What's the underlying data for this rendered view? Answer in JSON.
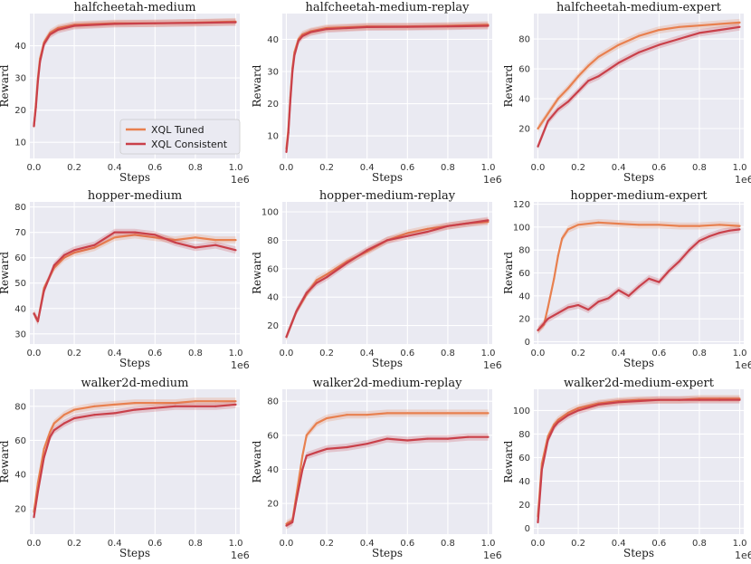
{
  "figure": {
    "xlabel": "Steps",
    "ylabel": "Reward",
    "x_offset_label": "1e6",
    "colors": {
      "axes_bg": "#eaeaf2",
      "grid": "#ffffff",
      "tuned": "#e8804f",
      "consistent": "#c9404a"
    }
  },
  "legend": {
    "placement": "lower-right of first panel",
    "items": [
      {
        "label": "XQL Tuned",
        "color": "#e8804f"
      },
      {
        "label": "XQL Consistent",
        "color": "#c9404a"
      }
    ]
  },
  "chart_data": [
    {
      "type": "line",
      "title": "halfcheetah-medium",
      "xlim": [
        -0.02,
        1.02
      ],
      "ylim": [
        5,
        50
      ],
      "xticks": [
        0.0,
        0.2,
        0.4,
        0.6,
        0.8,
        1.0
      ],
      "xtick_labels": [
        "0.0",
        "0.2",
        "0.4",
        "0.6",
        "0.8",
        "1.0"
      ],
      "yticks": [
        10,
        20,
        30,
        40
      ],
      "ytick_labels": [
        "10",
        "20",
        "30",
        "40"
      ],
      "series": [
        {
          "name": "XQL Tuned",
          "x": [
            0,
            0.01,
            0.02,
            0.03,
            0.05,
            0.08,
            0.12,
            0.2,
            0.4,
            0.6,
            0.8,
            1.0
          ],
          "values": [
            15,
            22,
            30,
            36,
            41,
            44,
            45.5,
            46.5,
            47,
            47,
            47.2,
            47.5
          ]
        },
        {
          "name": "XQL Consistent",
          "x": [
            0,
            0.01,
            0.02,
            0.03,
            0.05,
            0.08,
            0.12,
            0.2,
            0.4,
            0.6,
            0.8,
            1.0
          ],
          "values": [
            15,
            21,
            29,
            35,
            40.5,
            43.5,
            45,
            46.2,
            46.8,
            47,
            47.1,
            47.3
          ]
        }
      ]
    },
    {
      "type": "line",
      "title": "halfcheetah-medium-replay",
      "xlim": [
        -0.02,
        1.02
      ],
      "ylim": [
        3,
        48
      ],
      "xticks": [
        0.0,
        0.2,
        0.4,
        0.6,
        0.8,
        1.0
      ],
      "xtick_labels": [
        "0.0",
        "0.2",
        "0.4",
        "0.6",
        "0.8",
        "1.0"
      ],
      "yticks": [
        10,
        20,
        30,
        40
      ],
      "ytick_labels": [
        "10",
        "20",
        "30",
        "40"
      ],
      "series": [
        {
          "name": "XQL Tuned",
          "x": [
            0,
            0.01,
            0.02,
            0.03,
            0.04,
            0.06,
            0.08,
            0.12,
            0.2,
            0.4,
            0.6,
            0.8,
            1.0
          ],
          "values": [
            6,
            12,
            22,
            31,
            36,
            40,
            41.5,
            42.5,
            43.5,
            44,
            44,
            44.2,
            44.5
          ]
        },
        {
          "name": "XQL Consistent",
          "x": [
            0,
            0.01,
            0.02,
            0.03,
            0.04,
            0.06,
            0.08,
            0.12,
            0.2,
            0.4,
            0.6,
            0.8,
            1.0
          ],
          "values": [
            5,
            11,
            21,
            30,
            35,
            39.5,
            41,
            42.2,
            43.2,
            43.8,
            43.9,
            44,
            44.2
          ]
        }
      ]
    },
    {
      "type": "line",
      "title": "halfcheetah-medium-expert",
      "xlim": [
        -0.02,
        1.02
      ],
      "ylim": [
        0,
        97
      ],
      "xticks": [
        0.0,
        0.2,
        0.4,
        0.6,
        0.8,
        1.0
      ],
      "xtick_labels": [
        "0.0",
        "0.2",
        "0.4",
        "0.6",
        "0.8",
        "1.0"
      ],
      "yticks": [
        20,
        40,
        60,
        80
      ],
      "ytick_labels": [
        "20",
        "40",
        "60",
        "80"
      ],
      "series": [
        {
          "name": "XQL Tuned",
          "x": [
            0,
            0.05,
            0.1,
            0.15,
            0.2,
            0.25,
            0.3,
            0.4,
            0.5,
            0.6,
            0.7,
            0.8,
            0.9,
            1.0
          ],
          "values": [
            20,
            30,
            40,
            47,
            55,
            62,
            68,
            76,
            82,
            86,
            88,
            89,
            90,
            91
          ]
        },
        {
          "name": "XQL Consistent",
          "x": [
            0,
            0.05,
            0.1,
            0.15,
            0.2,
            0.25,
            0.3,
            0.4,
            0.5,
            0.6,
            0.7,
            0.8,
            0.9,
            1.0
          ],
          "values": [
            8,
            25,
            33,
            38,
            45,
            52,
            55,
            64,
            71,
            76,
            80,
            84,
            86,
            88
          ]
        }
      ]
    },
    {
      "type": "line",
      "title": "hopper-medium",
      "xlim": [
        -0.02,
        1.02
      ],
      "ylim": [
        26,
        82
      ],
      "xticks": [
        0.0,
        0.2,
        0.4,
        0.6,
        0.8,
        1.0
      ],
      "xtick_labels": [
        "0.0",
        "0.2",
        "0.4",
        "0.6",
        "0.8",
        "1.0"
      ],
      "yticks": [
        30,
        40,
        50,
        60,
        70,
        80
      ],
      "ytick_labels": [
        "30",
        "40",
        "50",
        "60",
        "70",
        "80"
      ],
      "series": [
        {
          "name": "XQL Tuned",
          "x": [
            0,
            0.02,
            0.05,
            0.1,
            0.15,
            0.2,
            0.3,
            0.4,
            0.5,
            0.6,
            0.7,
            0.8,
            0.9,
            1.0
          ],
          "values": [
            38,
            35,
            48,
            56,
            60,
            62,
            64,
            68,
            69,
            68,
            67,
            68,
            67,
            67
          ]
        },
        {
          "name": "XQL Consistent",
          "x": [
            0,
            0.02,
            0.05,
            0.1,
            0.15,
            0.2,
            0.3,
            0.4,
            0.5,
            0.6,
            0.7,
            0.8,
            0.9,
            1.0
          ],
          "values": [
            38,
            35,
            47,
            57,
            61,
            63,
            65,
            70,
            70,
            69,
            66,
            64,
            65,
            63
          ]
        }
      ]
    },
    {
      "type": "line",
      "title": "hopper-medium-replay",
      "xlim": [
        -0.02,
        1.02
      ],
      "ylim": [
        7,
        107
      ],
      "xticks": [
        0.0,
        0.2,
        0.4,
        0.6,
        0.8,
        1.0
      ],
      "xtick_labels": [
        "0.0",
        "0.2",
        "0.4",
        "0.6",
        "0.8",
        "1.0"
      ],
      "yticks": [
        20,
        40,
        60,
        80,
        100
      ],
      "ytick_labels": [
        "20",
        "40",
        "60",
        "80",
        "100"
      ],
      "series": [
        {
          "name": "XQL Tuned",
          "x": [
            0,
            0.05,
            0.1,
            0.15,
            0.2,
            0.3,
            0.4,
            0.5,
            0.6,
            0.7,
            0.8,
            0.9,
            1.0
          ],
          "values": [
            12,
            30,
            42,
            52,
            56,
            65,
            72,
            80,
            85,
            88,
            90,
            92,
            93
          ]
        },
        {
          "name": "XQL Consistent",
          "x": [
            0,
            0.05,
            0.1,
            0.15,
            0.2,
            0.3,
            0.4,
            0.5,
            0.6,
            0.7,
            0.8,
            0.9,
            1.0
          ],
          "values": [
            12,
            30,
            43,
            50,
            54,
            64,
            73,
            80,
            83,
            86,
            90,
            92,
            94
          ]
        }
      ]
    },
    {
      "type": "line",
      "title": "hopper-medium-expert",
      "xlim": [
        -0.02,
        1.02
      ],
      "ylim": [
        -2,
        122
      ],
      "xticks": [
        0.0,
        0.2,
        0.4,
        0.6,
        0.8,
        1.0
      ],
      "xtick_labels": [
        "0.0",
        "0.2",
        "0.4",
        "0.6",
        "0.8",
        "1.0"
      ],
      "yticks": [
        0,
        20,
        40,
        60,
        80,
        100,
        120
      ],
      "ytick_labels": [
        "0",
        "20",
        "40",
        "60",
        "80",
        "100",
        "120"
      ],
      "series": [
        {
          "name": "XQL Tuned",
          "x": [
            0,
            0.03,
            0.05,
            0.08,
            0.1,
            0.12,
            0.15,
            0.2,
            0.3,
            0.4,
            0.5,
            0.6,
            0.7,
            0.8,
            0.9,
            1.0
          ],
          "values": [
            10,
            15,
            30,
            55,
            75,
            90,
            98,
            102,
            104,
            103,
            102,
            102,
            101,
            101,
            102,
            101
          ]
        },
        {
          "name": "XQL Consistent",
          "x": [
            0,
            0.05,
            0.1,
            0.15,
            0.2,
            0.25,
            0.3,
            0.35,
            0.4,
            0.45,
            0.5,
            0.55,
            0.6,
            0.65,
            0.7,
            0.75,
            0.8,
            0.85,
            0.9,
            0.95,
            1.0
          ],
          "values": [
            10,
            20,
            25,
            30,
            32,
            28,
            35,
            38,
            45,
            40,
            48,
            55,
            52,
            62,
            70,
            80,
            88,
            92,
            95,
            97,
            98
          ]
        }
      ]
    },
    {
      "type": "line",
      "title": "walker2d-medium",
      "xlim": [
        -0.02,
        1.02
      ],
      "ylim": [
        5,
        90
      ],
      "xticks": [
        0.0,
        0.2,
        0.4,
        0.6,
        0.8,
        1.0
      ],
      "xtick_labels": [
        "0.0",
        "0.2",
        "0.4",
        "0.6",
        "0.8",
        "1.0"
      ],
      "yticks": [
        20,
        40,
        60,
        80
      ],
      "ytick_labels": [
        "20",
        "40",
        "60",
        "80"
      ],
      "series": [
        {
          "name": "XQL Tuned",
          "x": [
            0,
            0.02,
            0.05,
            0.08,
            0.1,
            0.15,
            0.2,
            0.3,
            0.4,
            0.5,
            0.6,
            0.7,
            0.8,
            0.9,
            1.0
          ],
          "values": [
            18,
            35,
            55,
            65,
            70,
            75,
            78,
            80,
            81,
            82,
            82,
            82,
            83,
            83,
            83
          ]
        },
        {
          "name": "XQL Consistent",
          "x": [
            0,
            0.02,
            0.05,
            0.08,
            0.1,
            0.15,
            0.2,
            0.3,
            0.4,
            0.5,
            0.6,
            0.7,
            0.8,
            0.9,
            1.0
          ],
          "values": [
            15,
            30,
            50,
            62,
            66,
            70,
            73,
            75,
            76,
            78,
            79,
            80,
            80,
            80,
            81
          ]
        }
      ]
    },
    {
      "type": "line",
      "title": "walker2d-medium-replay",
      "xlim": [
        -0.02,
        1.02
      ],
      "ylim": [
        2,
        87
      ],
      "xticks": [
        0.0,
        0.2,
        0.4,
        0.6,
        0.8,
        1.0
      ],
      "xtick_labels": [
        "0.0",
        "0.2",
        "0.4",
        "0.6",
        "0.8",
        "1.0"
      ],
      "yticks": [
        20,
        40,
        60,
        80
      ],
      "ytick_labels": [
        "20",
        "40",
        "60",
        "80"
      ],
      "series": [
        {
          "name": "XQL Tuned",
          "x": [
            0,
            0.03,
            0.05,
            0.08,
            0.1,
            0.15,
            0.2,
            0.3,
            0.4,
            0.5,
            0.6,
            0.7,
            0.8,
            0.9,
            1.0
          ],
          "values": [
            8,
            10,
            25,
            48,
            60,
            67,
            70,
            72,
            72,
            73,
            73,
            73,
            73,
            73,
            73
          ]
        },
        {
          "name": "XQL Consistent",
          "x": [
            0,
            0.03,
            0.05,
            0.08,
            0.1,
            0.15,
            0.2,
            0.3,
            0.4,
            0.5,
            0.6,
            0.7,
            0.8,
            0.9,
            1.0
          ],
          "values": [
            7,
            9,
            22,
            40,
            48,
            50,
            52,
            53,
            55,
            58,
            57,
            58,
            58,
            59,
            59
          ]
        }
      ]
    },
    {
      "type": "line",
      "title": "walker2d-medium-expert",
      "xlim": [
        -0.02,
        1.02
      ],
      "ylim": [
        -5,
        118
      ],
      "xticks": [
        0.0,
        0.2,
        0.4,
        0.6,
        0.8,
        1.0
      ],
      "xtick_labels": [
        "0.0",
        "0.2",
        "0.4",
        "0.6",
        "0.8",
        "1.0"
      ],
      "yticks": [
        0,
        20,
        40,
        60,
        80,
        100
      ],
      "ytick_labels": [
        "0",
        "20",
        "40",
        "60",
        "80",
        "100"
      ],
      "series": [
        {
          "name": "XQL Tuned",
          "x": [
            0,
            0.02,
            0.05,
            0.08,
            0.1,
            0.15,
            0.2,
            0.3,
            0.4,
            0.5,
            0.6,
            0.7,
            0.8,
            0.9,
            1.0
          ],
          "values": [
            10,
            55,
            78,
            88,
            92,
            98,
            102,
            106,
            108,
            109,
            109,
            109,
            110,
            110,
            110
          ]
        },
        {
          "name": "XQL Consistent",
          "x": [
            0,
            0.02,
            0.05,
            0.08,
            0.1,
            0.15,
            0.2,
            0.3,
            0.4,
            0.5,
            0.6,
            0.7,
            0.8,
            0.9,
            1.0
          ],
          "values": [
            5,
            50,
            75,
            86,
            90,
            96,
            100,
            105,
            107,
            108,
            109,
            109,
            109,
            109,
            109
          ]
        }
      ]
    }
  ]
}
